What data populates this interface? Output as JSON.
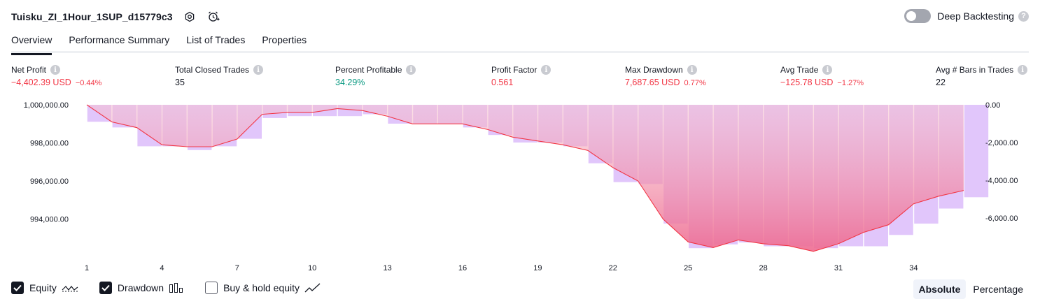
{
  "header": {
    "strategy_name": "Tuisku_ZI_1Hour_1SUP_d15779c3",
    "deep_backtesting_label": "Deep Backtesting",
    "deep_backtesting_enabled": false
  },
  "tabs": [
    {
      "label": "Overview",
      "active": true
    },
    {
      "label": "Performance Summary",
      "active": false
    },
    {
      "label": "List of Trades",
      "active": false
    },
    {
      "label": "Properties",
      "active": false
    }
  ],
  "metrics": [
    {
      "label": "Net Profit",
      "value": "−4,402.39 USD",
      "pct": "−0.44%",
      "tone": "neg"
    },
    {
      "label": "Total Closed Trades",
      "value": "35",
      "pct": "",
      "tone": ""
    },
    {
      "label": "Percent Profitable",
      "value": "34.29%",
      "pct": "",
      "tone": "pos"
    },
    {
      "label": "Profit Factor",
      "value": "0.561",
      "pct": "",
      "tone": "neg"
    },
    {
      "label": "Max Drawdown",
      "value": "7,687.65 USD",
      "pct": "0.77%",
      "tone": "neg"
    },
    {
      "label": "Avg Trade",
      "value": "−125.78 USD",
      "pct": "−1.27%",
      "tone": "neg"
    },
    {
      "label": "Avg # Bars in Trades",
      "value": "22",
      "pct": "",
      "tone": ""
    }
  ],
  "chart_data": {
    "type": "line",
    "x_ticks": [
      "1",
      "4",
      "7",
      "10",
      "13",
      "16",
      "19",
      "22",
      "25",
      "28",
      "31",
      "34"
    ],
    "left_axis_ticks": [
      "1,000,000.00",
      "998,000.00",
      "996,000.00",
      "994,000.00"
    ],
    "right_axis_ticks": [
      "0.00",
      "-2,000.00",
      "-4,000.00",
      "-6,000.00"
    ],
    "ylim_equity": [
      992000,
      1000000
    ],
    "ylim_drawdown": [
      -8000,
      0
    ],
    "series": [
      {
        "name": "Equity",
        "color": "#f23645",
        "x": [
          1,
          2,
          3,
          4,
          5,
          6,
          7,
          8,
          9,
          10,
          11,
          12,
          13,
          14,
          15,
          16,
          17,
          18,
          19,
          20,
          21,
          22,
          23,
          24,
          25,
          26,
          27,
          28,
          29,
          30,
          31,
          32,
          33,
          34,
          35,
          36
        ],
        "values": [
          1000000,
          999100,
          998800,
          997900,
          997800,
          997800,
          998200,
          999500,
          999600,
          999600,
          999800,
          999700,
          999400,
          999000,
          999000,
          999000,
          998700,
          998300,
          998100,
          997900,
          997600,
          996700,
          996000,
          994000,
          992800,
          992500,
          992900,
          992700,
          992600,
          992300,
          992700,
          993300,
          993700,
          994800,
          995200,
          995500
        ]
      },
      {
        "name": "Drawdown",
        "color": "#e1c6fb",
        "x": [
          2,
          3,
          4,
          5,
          6,
          7,
          8,
          9,
          10,
          11,
          12,
          13,
          14,
          15,
          16,
          17,
          18,
          19,
          20,
          21,
          22,
          23,
          24,
          25,
          26,
          27,
          28,
          29,
          30,
          31,
          32,
          33,
          34,
          35,
          36,
          37
        ],
        "values": [
          -900,
          -1200,
          -2200,
          -2200,
          -2400,
          -2200,
          -1800,
          -700,
          -600,
          -600,
          -600,
          -500,
          -1000,
          -1000,
          -1000,
          -1200,
          -1600,
          -2000,
          -2000,
          -2200,
          -3100,
          -4100,
          -4200,
          -6300,
          -7600,
          -7400,
          -7300,
          -7500,
          -7500,
          -7600,
          -7500,
          -7500,
          -6900,
          -6300,
          -5500,
          -4900
        ]
      }
    ]
  },
  "legend": [
    {
      "label": "Equity",
      "checked": true,
      "icon": "equity-line-icon"
    },
    {
      "label": "Drawdown",
      "checked": true,
      "icon": "drawdown-bars-icon"
    },
    {
      "label": "Buy & hold equity",
      "checked": false,
      "icon": "buy-hold-line-icon"
    }
  ],
  "view_modes": [
    {
      "label": "Absolute",
      "active": true
    },
    {
      "label": "Percentage",
      "active": false
    }
  ]
}
